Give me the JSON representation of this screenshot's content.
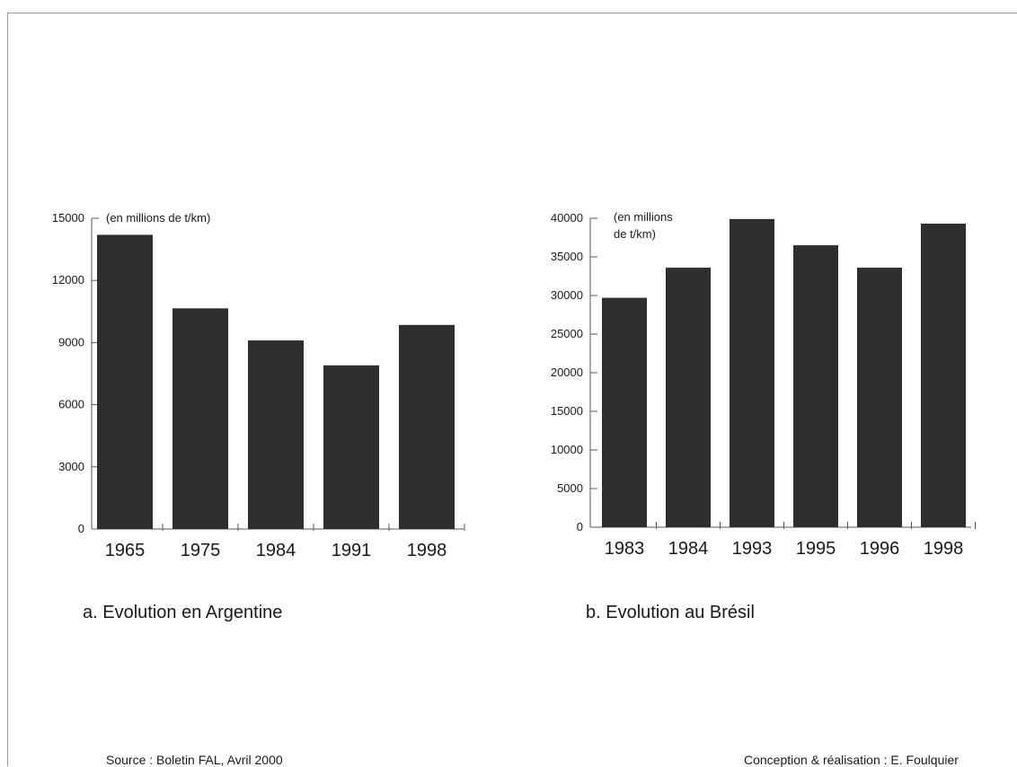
{
  "chart_data": [
    {
      "type": "bar",
      "categories": [
        "1965",
        "1975",
        "1984",
        "1991",
        "1998"
      ],
      "values": [
        14200,
        10650,
        9100,
        7900,
        9850
      ],
      "ylabel": "(en millions de t/km)",
      "yticks": [
        0,
        3000,
        6000,
        9000,
        12000,
        15000
      ],
      "ylim": [
        0,
        15000
      ],
      "caption": "a. Evolution en Argentine",
      "bar_color": "#2e2e2e",
      "grid": false
    },
    {
      "type": "bar",
      "categories": [
        "1983",
        "1984",
        "1993",
        "1995",
        "1996",
        "1998"
      ],
      "values": [
        29700,
        33600,
        39900,
        36500,
        33600,
        39300
      ],
      "ylabel_lines": [
        "(en millions",
        "de t/km)"
      ],
      "yticks": [
        0,
        5000,
        10000,
        15000,
        20000,
        25000,
        30000,
        35000,
        40000
      ],
      "ylim": [
        0,
        40000
      ],
      "caption": "b. Evolution au Brésil",
      "bar_color": "#2e2e2e",
      "grid": false
    }
  ],
  "footer": {
    "source": "Source : Boletin FAL, Avril 2000",
    "credit": "Conception & réalisation : E. Foulquier"
  }
}
